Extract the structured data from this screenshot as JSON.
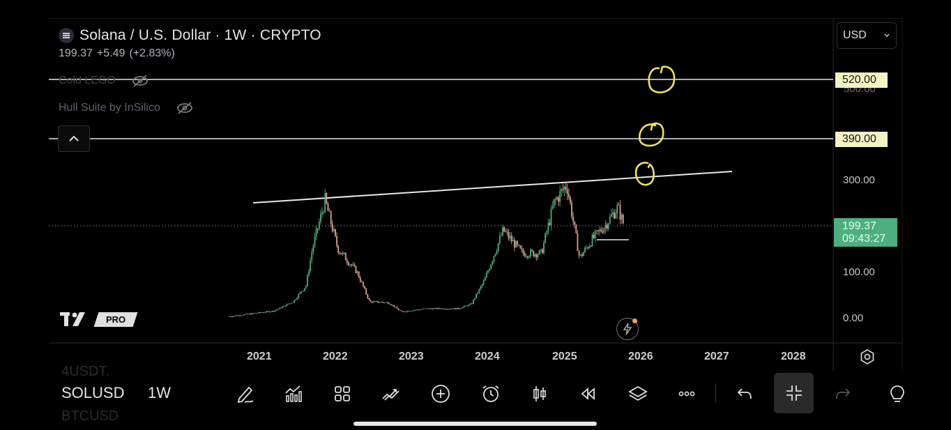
{
  "header": {
    "title": "Solana / U.S. Dollar · 1W · CRYPTO",
    "price": "199.37",
    "change": "+5.49",
    "change_pct": "(+2.83%)"
  },
  "indicators": [
    {
      "name": "Cold LEGO"
    },
    {
      "name": "Hull Suite by InSilico"
    }
  ],
  "currency": {
    "value": "USD"
  },
  "price_axis": {
    "ticks": [
      "300.00",
      "100.00",
      "0.00"
    ],
    "ghost_tick": "500.00",
    "hlines": [
      "520.00",
      "390.00"
    ],
    "last_price": "199.37",
    "countdown": "09:43:27"
  },
  "time_axis": {
    "ticks": [
      "2021",
      "2022",
      "2023",
      "2024",
      "2025",
      "2026",
      "2027",
      "2028"
    ]
  },
  "logo": {
    "badge": "PRO"
  },
  "toolbar": {
    "symbol": "SOLUSD",
    "timeframe": "1W",
    "ghost_top": "4USDT.",
    "ghost_bottom": "BTCUSD"
  },
  "colors": {
    "up": "#4caf7f",
    "down": "#e0a090",
    "annotation": "#f2e25c",
    "hline_label_bg": "#f5f3c4",
    "last_price_bg": "#4caf7f"
  },
  "chart_data": {
    "type": "candlestick",
    "symbol": "SOLUSD",
    "interval": "1W",
    "x_range": [
      "2020-05",
      "2028-06"
    ],
    "y_ticks_printed": [
      0,
      100,
      300
    ],
    "approx_close_path": [
      {
        "t": "2020-08",
        "close": 3
      },
      {
        "t": "2021-03",
        "close": 15
      },
      {
        "t": "2021-06",
        "close": 35
      },
      {
        "t": "2021-08",
        "close": 70
      },
      {
        "t": "2021-09",
        "close": 150
      },
      {
        "t": "2021-11",
        "close": 255
      },
      {
        "t": "2022-01",
        "close": 150
      },
      {
        "t": "2022-04",
        "close": 100
      },
      {
        "t": "2022-06",
        "close": 35
      },
      {
        "t": "2022-09",
        "close": 33
      },
      {
        "t": "2022-11",
        "close": 13
      },
      {
        "t": "2023-03",
        "close": 20
      },
      {
        "t": "2023-08",
        "close": 20
      },
      {
        "t": "2023-10",
        "close": 30
      },
      {
        "t": "2023-12",
        "close": 80
      },
      {
        "t": "2024-03",
        "close": 190
      },
      {
        "t": "2024-06",
        "close": 140
      },
      {
        "t": "2024-09",
        "close": 140
      },
      {
        "t": "2024-11",
        "close": 250
      },
      {
        "t": "2025-01",
        "close": 290
      },
      {
        "t": "2025-03",
        "close": 130
      },
      {
        "t": "2025-05",
        "close": 170
      },
      {
        "t": "2025-07",
        "close": 200
      },
      {
        "t": "2025-09",
        "close": 240
      },
      {
        "t": "2025-10",
        "close": 199.37
      }
    ],
    "last_value": 199.37,
    "horizontal_lines": [
      520,
      390
    ],
    "trendline": [
      {
        "t": "2021-08",
        "v": 245
      },
      {
        "t": "2026-12",
        "v": 320
      }
    ]
  }
}
